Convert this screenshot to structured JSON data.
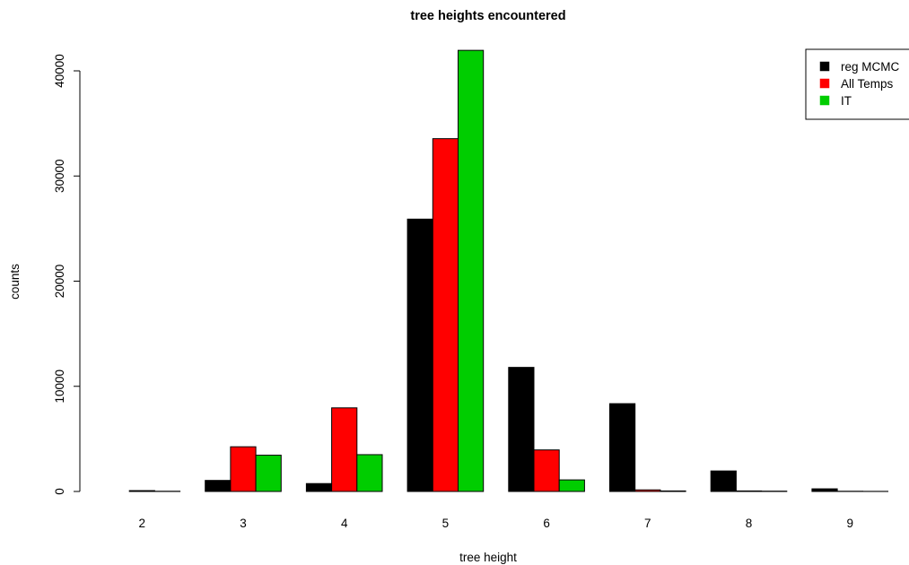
{
  "chart_data": {
    "type": "bar",
    "title": "tree heights encountered",
    "xlabel": "tree height",
    "ylabel": "counts",
    "categories": [
      "2",
      "3",
      "4",
      "5",
      "6",
      "7",
      "8",
      "9"
    ],
    "series": [
      {
        "name": "reg MCMC",
        "color": "#000000",
        "values": [
          0,
          1050,
          750,
          25900,
          11800,
          8350,
          1950,
          250
        ]
      },
      {
        "name": "All Temps",
        "color": "#ff0000",
        "values": [
          80,
          4250,
          7950,
          33550,
          3950,
          150,
          50,
          20
        ]
      },
      {
        "name": "IT",
        "color": "#00cd00",
        "values": [
          20,
          3450,
          3500,
          41950,
          1100,
          50,
          30,
          10
        ]
      }
    ],
    "ylim": [
      0,
      42000
    ],
    "yticks": [
      "0",
      "10000",
      "20000",
      "30000",
      "40000"
    ],
    "grid": false,
    "legend_position": "top-right"
  }
}
